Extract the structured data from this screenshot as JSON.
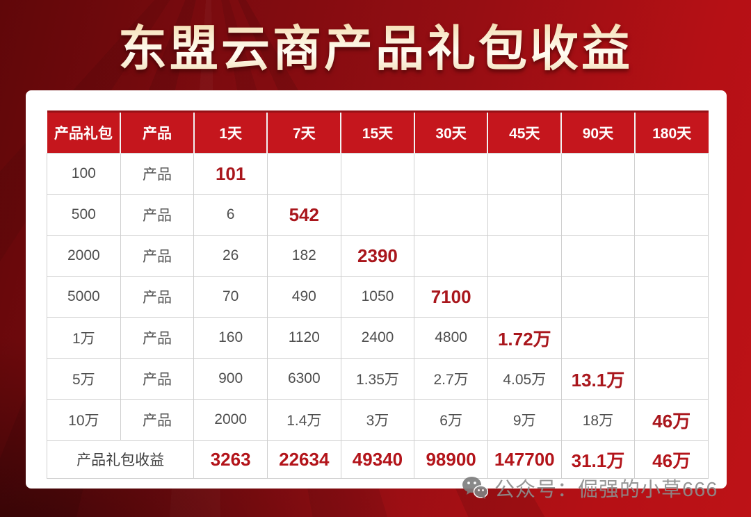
{
  "title": "东盟云商产品礼包收益",
  "colors": {
    "background_red": "#8b0e12",
    "header_red": "#c5161d",
    "highlight_red": "#a9161c",
    "footer_value_red": "#b3141a",
    "plain_text_gray": "#4f4f4f",
    "title_gold": "#f1d7a8"
  },
  "table": {
    "headers": [
      "产品礼包",
      "产品",
      "1天",
      "7天",
      "15天",
      "30天",
      "45天",
      "90天",
      "180天"
    ],
    "rows": [
      {
        "package": "100",
        "product": "产品",
        "values": [
          "101",
          "",
          "",
          "",
          "",
          "",
          ""
        ],
        "highlight_index": 0
      },
      {
        "package": "500",
        "product": "产品",
        "values": [
          "6",
          "542",
          "",
          "",
          "",
          "",
          ""
        ],
        "highlight_index": 1
      },
      {
        "package": "2000",
        "product": "产品",
        "values": [
          "26",
          "182",
          "2390",
          "",
          "",
          "",
          ""
        ],
        "highlight_index": 2
      },
      {
        "package": "5000",
        "product": "产品",
        "values": [
          "70",
          "490",
          "1050",
          "7100",
          "",
          "",
          ""
        ],
        "highlight_index": 3
      },
      {
        "package": "1万",
        "product": "产品",
        "values": [
          "160",
          "1120",
          "2400",
          "4800",
          "1.72万",
          "",
          ""
        ],
        "highlight_index": 4
      },
      {
        "package": "5万",
        "product": "产品",
        "values": [
          "900",
          "6300",
          "1.35万",
          "2.7万",
          "4.05万",
          "13.1万",
          ""
        ],
        "highlight_index": 5
      },
      {
        "package": "10万",
        "product": "产品",
        "values": [
          "2000",
          "1.4万",
          "3万",
          "6万",
          "9万",
          "18万",
          "46万"
        ],
        "highlight_index": 6
      }
    ],
    "footer": {
      "label": "产品礼包收益",
      "values": [
        "3263",
        "22634",
        "49340",
        "98900",
        "147700",
        "31.1万",
        "46万"
      ]
    }
  },
  "watermark": {
    "icon": "wechat-icon",
    "text": "公众号：倔强的小草666"
  },
  "chart_data": {
    "type": "table",
    "title": "东盟云商产品礼包收益",
    "columns": [
      "产品礼包",
      "产品",
      "1天",
      "7天",
      "15天",
      "30天",
      "45天",
      "90天",
      "180天"
    ],
    "rows": [
      [
        "100",
        "产品",
        "101",
        "",
        "",
        "",
        "",
        "",
        ""
      ],
      [
        "500",
        "产品",
        "6",
        "542",
        "",
        "",
        "",
        "",
        ""
      ],
      [
        "2000",
        "产品",
        "26",
        "182",
        "2390",
        "",
        "",
        "",
        ""
      ],
      [
        "5000",
        "产品",
        "70",
        "490",
        "1050",
        "7100",
        "",
        "",
        ""
      ],
      [
        "1万",
        "产品",
        "160",
        "1120",
        "2400",
        "4800",
        "1.72万",
        "",
        ""
      ],
      [
        "5万",
        "产品",
        "900",
        "6300",
        "1.35万",
        "2.7万",
        "4.05万",
        "13.1万",
        ""
      ],
      [
        "10万",
        "产品",
        "2000",
        "1.4万",
        "3万",
        "6万",
        "9万",
        "18万",
        "46万"
      ]
    ],
    "footer_row": [
      "产品礼包收益",
      "3263",
      "22634",
      "49340",
      "98900",
      "147700",
      "31.1万",
      "46万"
    ],
    "notes": "Diagonal cells (each row's value at its own maturity day) are highlighted bold dark-red; footer row sums each day-column and is bold dark-red."
  }
}
